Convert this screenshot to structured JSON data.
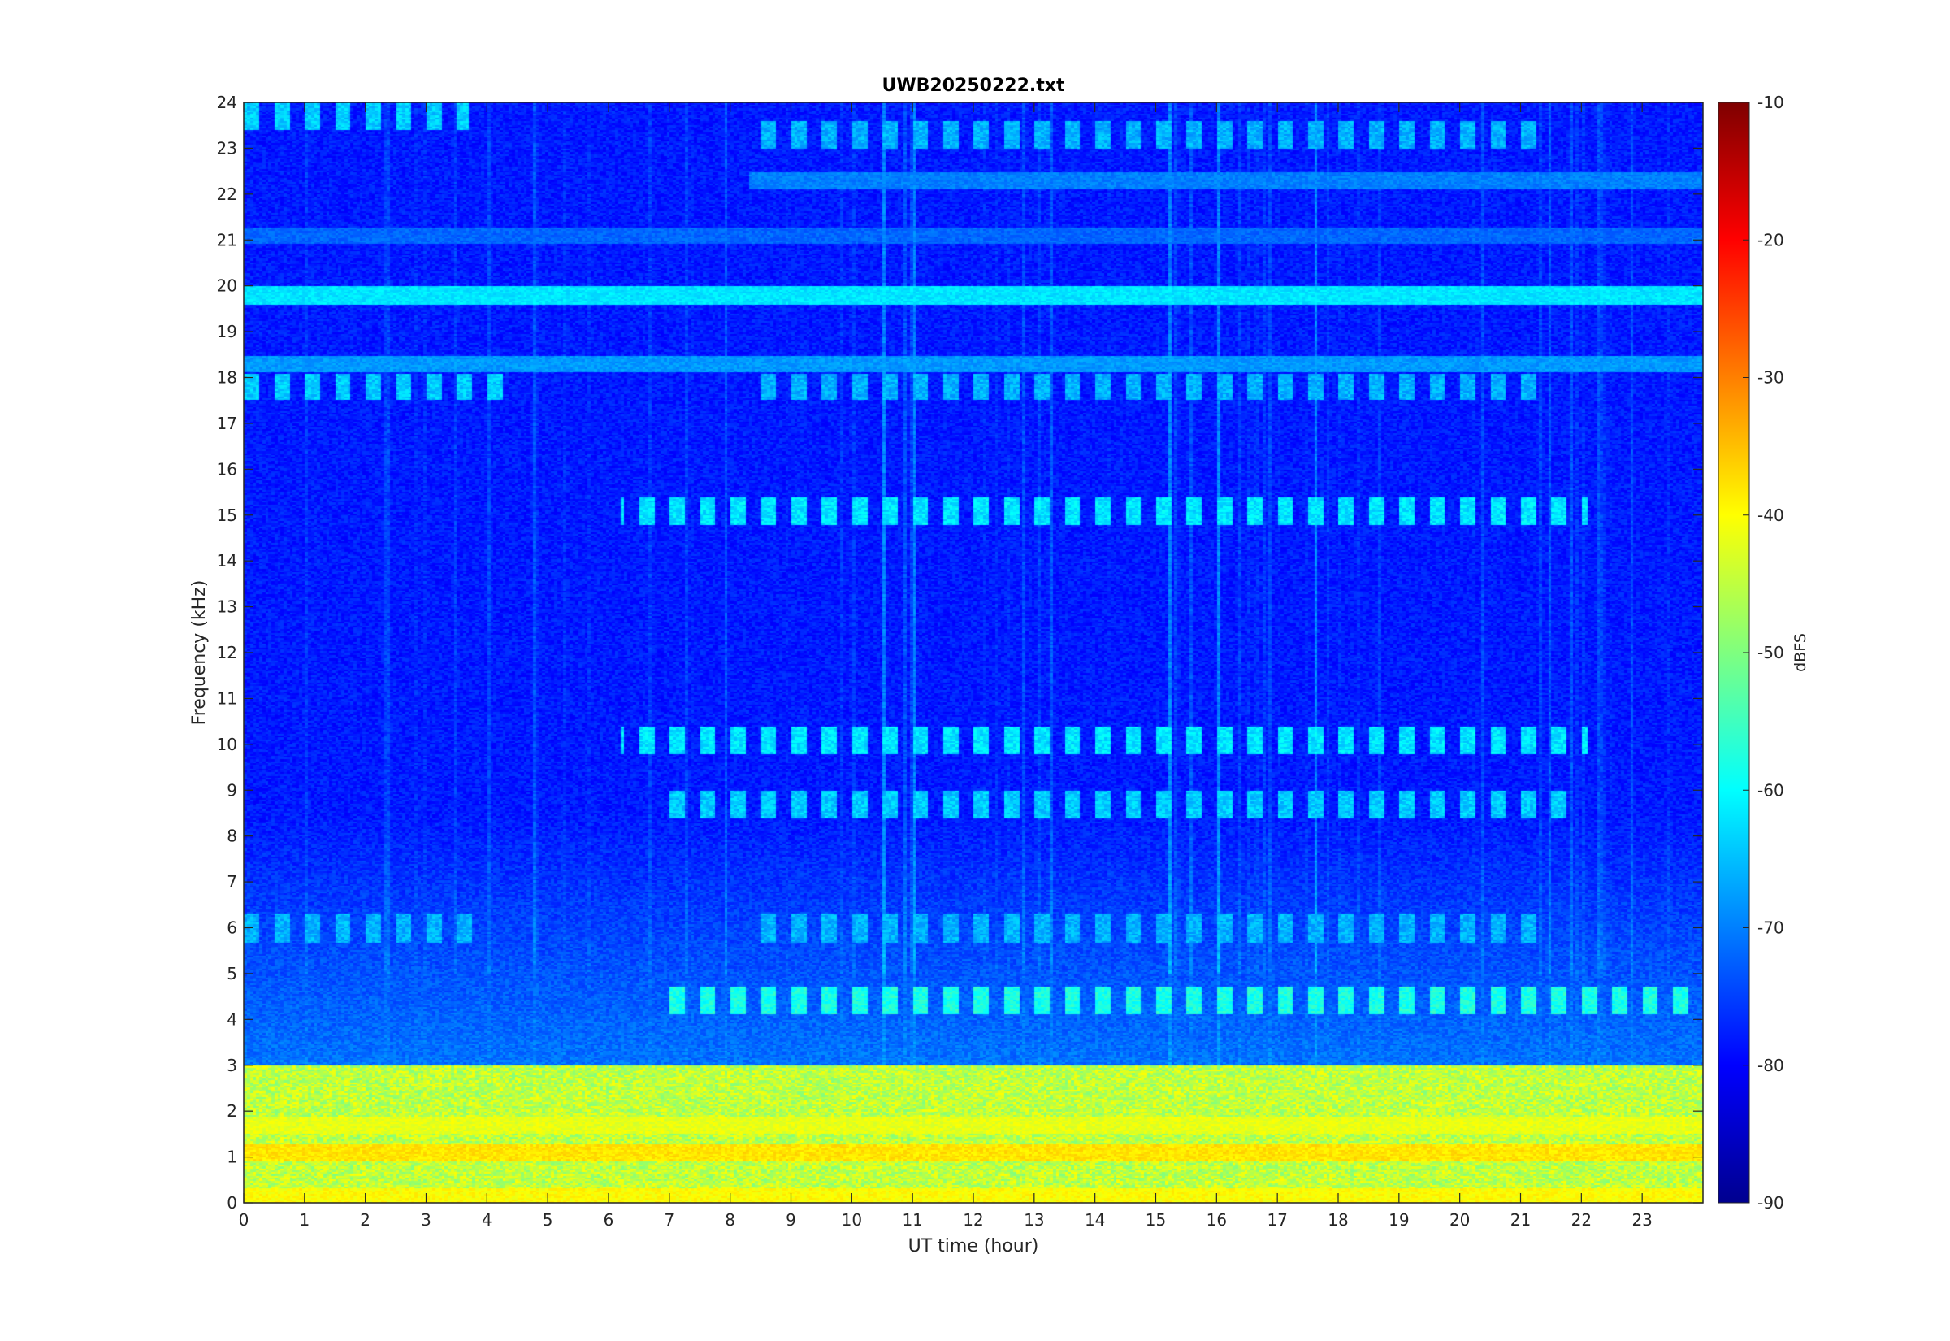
{
  "chart_data": {
    "type": "heatmap",
    "title": "UWB20250222.txt",
    "xlabel": "UT time (hour)",
    "ylabel": "Frequency (kHz)",
    "xlim": [
      0,
      24
    ],
    "ylim": [
      0,
      24
    ],
    "xticks": [
      "0",
      "1",
      "2",
      "3",
      "4",
      "5",
      "6",
      "7",
      "8",
      "9",
      "10",
      "11",
      "12",
      "13",
      "14",
      "15",
      "16",
      "17",
      "18",
      "19",
      "20",
      "21",
      "22",
      "23"
    ],
    "yticks": [
      "0",
      "1",
      "2",
      "3",
      "4",
      "5",
      "6",
      "7",
      "8",
      "9",
      "10",
      "11",
      "12",
      "13",
      "14",
      "15",
      "16",
      "17",
      "18",
      "19",
      "20",
      "21",
      "22",
      "23",
      "24"
    ],
    "colorbar": {
      "label": "dBFS",
      "colormap": "jet",
      "range": [
        -90,
        -10
      ],
      "ticks": [
        "-10",
        "-20",
        "-30",
        "-40",
        "-50",
        "-60",
        "-70",
        "-80",
        "-90"
      ]
    },
    "background_level_db": -78,
    "features": [
      {
        "kind": "band",
        "freq_khz": 19.8,
        "t_start": 0,
        "t_end": 24,
        "level_db": -62
      },
      {
        "kind": "band",
        "freq_khz": 18.3,
        "t_start": 0,
        "t_end": 24,
        "level_db": -68
      },
      {
        "kind": "band",
        "freq_khz": 22.3,
        "t_start": 8.3,
        "t_end": 24,
        "level_db": -70
      },
      {
        "kind": "band",
        "freq_khz": 21.1,
        "t_start": 0,
        "t_end": 24,
        "level_db": -72
      },
      {
        "kind": "pulse_train",
        "freq_khz": 23.7,
        "t_start": 0,
        "t_end": 3.7,
        "level_db": -64
      },
      {
        "kind": "pulse_train",
        "freq_khz": 23.3,
        "t_start": 8.3,
        "t_end": 21.5,
        "level_db": -66
      },
      {
        "kind": "pulse_train",
        "freq_khz": 17.8,
        "t_start": 0,
        "t_end": 4.3,
        "level_db": -64
      },
      {
        "kind": "pulse_train",
        "freq_khz": 17.8,
        "t_start": 8.3,
        "t_end": 21.5,
        "level_db": -66
      },
      {
        "kind": "pulse_train",
        "freq_khz": 15.1,
        "t_start": 6.2,
        "t_end": 22.1,
        "level_db": -62
      },
      {
        "kind": "pulse_train",
        "freq_khz": 10.1,
        "t_start": 6.2,
        "t_end": 22.1,
        "level_db": -62
      },
      {
        "kind": "pulse_train",
        "freq_khz": 8.7,
        "t_start": 7.0,
        "t_end": 22.0,
        "level_db": -64
      },
      {
        "kind": "pulse_train",
        "freq_khz": 6.0,
        "t_start": 0,
        "t_end": 4.0,
        "level_db": -66
      },
      {
        "kind": "pulse_train",
        "freq_khz": 6.0,
        "t_start": 8.3,
        "t_end": 21.5,
        "level_db": -66
      },
      {
        "kind": "pulse_train",
        "freq_khz": 4.4,
        "t_start": 7.0,
        "t_end": 24,
        "level_db": -58
      },
      {
        "kind": "broadband_low",
        "freq_range_khz": [
          0,
          3
        ],
        "t_start": 0,
        "t_end": 24,
        "level_db": -45
      },
      {
        "kind": "band",
        "freq_khz": 1.1,
        "t_start": 0,
        "t_end": 24,
        "level_db": -38
      },
      {
        "kind": "band",
        "freq_khz": 1.7,
        "t_start": 0,
        "t_end": 24,
        "level_db": -42
      },
      {
        "kind": "band",
        "freq_khz": 0.15,
        "t_start": 0,
        "t_end": 24,
        "level_db": -40
      }
    ],
    "vertical_spikes_hour": [
      15.2,
      17.6,
      16.0,
      11.0,
      10.5
    ]
  }
}
